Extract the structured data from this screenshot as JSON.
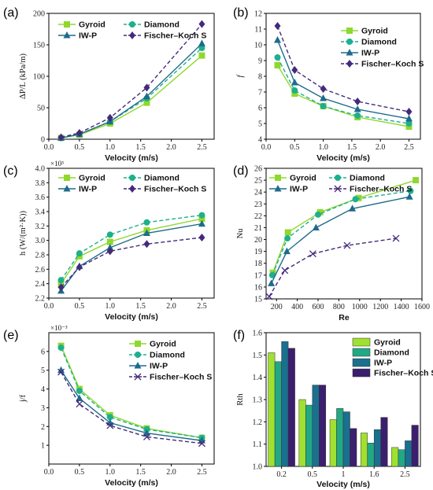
{
  "chart_data": [
    {
      "id": "a",
      "type": "line",
      "panel_label": "(a)",
      "xlabel": "Velocity (m/s)",
      "ylabel": "ΔP/L (kPa/m)",
      "xlim": [
        0,
        2.7
      ],
      "ylim": [
        0,
        200
      ],
      "xticks": [
        0,
        0.5,
        1.0,
        1.5,
        2.0,
        2.5
      ],
      "xtick_labels": [
        "0.0",
        "0.5",
        "1.0",
        "1.5",
        "2.0",
        "2.5"
      ],
      "yticks": [
        0,
        50,
        100,
        150,
        200
      ],
      "ytick_labels": [
        "0",
        "50",
        "100",
        "150",
        "200"
      ],
      "legend_position": "top-left",
      "legend_columns": 2,
      "series": [
        {
          "name": "Gyroid",
          "x": [
            0.2,
            0.5,
            1.0,
            1.6,
            2.5
          ],
          "values": [
            2,
            7,
            25,
            58,
            133
          ]
        },
        {
          "name": "Diamond",
          "x": [
            0.2,
            0.5,
            1.0,
            1.6,
            2.5
          ],
          "values": [
            2,
            8,
            28,
            65,
            145
          ]
        },
        {
          "name": "IW-P",
          "x": [
            0.2,
            0.5,
            1.0,
            1.6,
            2.5
          ],
          "values": [
            2,
            8,
            28,
            68,
            152
          ]
        },
        {
          "name": "Fischer–Koch S",
          "x": [
            0.2,
            0.5,
            1.0,
            1.6,
            2.5
          ],
          "values": [
            3,
            10,
            34,
            82,
            183
          ]
        }
      ]
    },
    {
      "id": "b",
      "type": "line",
      "panel_label": "(b)",
      "xlabel": "Velocity (m/s)",
      "ylabel": "f",
      "xlim": [
        0,
        2.7
      ],
      "ylim": [
        4,
        12
      ],
      "xticks": [
        0,
        0.5,
        1.0,
        1.5,
        2.0,
        2.5
      ],
      "xtick_labels": [
        "0.0",
        "0.5",
        "1.0",
        "1.5",
        "2.0",
        "2.5"
      ],
      "yticks": [
        4,
        5,
        6,
        7,
        8,
        9,
        10,
        11,
        12
      ],
      "ytick_labels": [
        "4",
        "5",
        "6",
        "7",
        "8",
        "9",
        "10",
        "11",
        "12"
      ],
      "legend_position": "right",
      "legend_columns": 1,
      "series": [
        {
          "name": "Gyroid",
          "x": [
            0.2,
            0.5,
            1.0,
            1.6,
            2.5
          ],
          "values": [
            8.7,
            6.9,
            6.1,
            5.4,
            4.8
          ]
        },
        {
          "name": "Diamond",
          "x": [
            0.2,
            0.5,
            1.0,
            1.6,
            2.5
          ],
          "values": [
            9.2,
            7.1,
            6.1,
            5.5,
            5.0
          ]
        },
        {
          "name": "IW-P",
          "x": [
            0.2,
            0.5,
            1.0,
            1.6,
            2.5
          ],
          "values": [
            10.3,
            7.6,
            6.6,
            5.9,
            5.3
          ]
        },
        {
          "name": "Fischer–Koch S",
          "x": [
            0.2,
            0.5,
            1.0,
            1.6,
            2.5
          ],
          "values": [
            11.2,
            8.4,
            7.2,
            6.4,
            5.75
          ]
        }
      ]
    },
    {
      "id": "c",
      "type": "line",
      "panel_label": "(c)",
      "xlabel": "Velocity (m/s)",
      "ylabel": "h (W/(m²·K))",
      "multiplier": "×10³",
      "xlim": [
        0,
        2.7
      ],
      "ylim": [
        2.2,
        4.0
      ],
      "xticks": [
        0,
        0.5,
        1.0,
        1.5,
        2.0,
        2.5
      ],
      "xtick_labels": [
        "0.0",
        "0.5",
        "1.0",
        "1.5",
        "2.0",
        "2.5"
      ],
      "yticks": [
        2.2,
        2.4,
        2.6,
        2.8,
        3.0,
        3.2,
        3.4,
        3.6,
        3.8,
        4.0
      ],
      "ytick_labels": [
        "2.2",
        "2.4",
        "2.6",
        "2.8",
        "3.0",
        "3.2",
        "3.4",
        "3.6",
        "3.8",
        "4.0"
      ],
      "legend_position": "top-left",
      "legend_columns": 2,
      "series": [
        {
          "name": "Gyroid",
          "x": [
            0.2,
            0.5,
            1.0,
            1.6,
            2.5
          ],
          "values": [
            2.4,
            2.78,
            2.98,
            3.14,
            3.3
          ]
        },
        {
          "name": "Diamond",
          "x": [
            0.2,
            0.5,
            1.0,
            1.6,
            2.5
          ],
          "values": [
            2.45,
            2.82,
            3.08,
            3.25,
            3.35
          ]
        },
        {
          "name": "IW-P",
          "x": [
            0.2,
            0.5,
            1.0,
            1.6,
            2.5
          ],
          "values": [
            2.3,
            2.64,
            2.9,
            3.1,
            3.23
          ]
        },
        {
          "name": "Fischer–Koch S",
          "x": [
            0.2,
            0.5,
            1.0,
            1.6,
            2.5
          ],
          "values": [
            2.35,
            2.63,
            2.85,
            2.95,
            3.04
          ]
        }
      ]
    },
    {
      "id": "d",
      "type": "line",
      "panel_label": "(d)",
      "xlabel": "Re",
      "ylabel": "Nu",
      "xlim": [
        100,
        1600
      ],
      "ylim": [
        15,
        26
      ],
      "xticks": [
        200,
        400,
        600,
        800,
        1000,
        1200,
        1400,
        1600
      ],
      "xtick_labels": [
        "200",
        "400",
        "600",
        "800",
        "1000",
        "1200",
        "1400",
        "1600"
      ],
      "yticks": [
        15,
        16,
        17,
        18,
        19,
        20,
        21,
        22,
        23,
        24,
        25,
        26
      ],
      "ytick_labels": [
        "15",
        "16",
        "17",
        "18",
        "19",
        "20",
        "21",
        "22",
        "23",
        "24",
        "25",
        "26"
      ],
      "legend_position": "top-left",
      "legend_columns": 2,
      "series": [
        {
          "name": "Gyroid",
          "x": [
            165,
            310,
            620,
            990,
            1540
          ],
          "values": [
            17.2,
            20.6,
            22.3,
            23.5,
            25.0
          ]
        },
        {
          "name": "Diamond",
          "x": [
            160,
            305,
            600,
            960,
            1490
          ],
          "values": [
            17.0,
            20.1,
            22.1,
            23.4,
            24.1
          ]
        },
        {
          "name": "IW-P",
          "x": [
            150,
            300,
            580,
            930,
            1480
          ],
          "values": [
            16.3,
            19.0,
            21.0,
            22.6,
            23.6
          ]
        },
        {
          "name": "Fischer–Koch S",
          "x": [
            130,
            280,
            550,
            880,
            1350
          ],
          "values": [
            15.2,
            17.4,
            18.8,
            19.5,
            20.1
          ]
        }
      ]
    },
    {
      "id": "e",
      "type": "line",
      "panel_label": "(e)",
      "xlabel": "Velocity (m/s)",
      "ylabel": "j/f",
      "multiplier": "×10⁻³",
      "xlim": [
        0,
        2.7
      ],
      "ylim": [
        0,
        7
      ],
      "xticks": [
        0,
        0.5,
        1.0,
        1.5,
        2.0,
        2.5
      ],
      "xtick_labels": [
        "0.0",
        "0.5",
        "1.0",
        "1.5",
        "2.0",
        "2.5"
      ],
      "yticks": [
        1,
        2,
        3,
        4,
        5,
        6
      ],
      "ytick_labels": [
        "1",
        "2",
        "3",
        "4",
        "5",
        "6"
      ],
      "legend_position": "top-right",
      "legend_columns": 1,
      "series": [
        {
          "name": "Gyroid",
          "x": [
            0.2,
            0.5,
            1.0,
            1.6,
            2.5
          ],
          "values": [
            6.3,
            4.0,
            2.6,
            1.9,
            1.4
          ]
        },
        {
          "name": "Diamond",
          "x": [
            0.2,
            0.5,
            1.0,
            1.6,
            2.5
          ],
          "values": [
            6.2,
            3.9,
            2.5,
            1.85,
            1.4
          ]
        },
        {
          "name": "IW-P",
          "x": [
            0.2,
            0.5,
            1.0,
            1.6,
            2.5
          ],
          "values": [
            5.0,
            3.5,
            2.2,
            1.65,
            1.25
          ]
        },
        {
          "name": "Fischer–Koch S",
          "x": [
            0.2,
            0.5,
            1.0,
            1.6,
            2.5
          ],
          "values": [
            4.9,
            3.2,
            2.05,
            1.45,
            1.1
          ]
        }
      ]
    },
    {
      "id": "f",
      "type": "bar",
      "panel_label": "(f)",
      "xlabel": "Velocity (m/s)",
      "ylabel": "Rth",
      "categories": [
        "0.2",
        "0.5",
        "1",
        "1.6",
        "2.5"
      ],
      "ylim": [
        1.0,
        1.6
      ],
      "yticks": [
        1.0,
        1.1,
        1.2,
        1.3,
        1.4,
        1.5,
        1.6
      ],
      "ytick_labels": [
        "1.0",
        "1.1",
        "1.2",
        "1.3",
        "1.4",
        "1.5",
        "1.6"
      ],
      "legend_position": "top-right",
      "legend_columns": 1,
      "series": [
        {
          "name": "Gyroid",
          "values": [
            1.51,
            1.3,
            1.21,
            1.15,
            1.085
          ]
        },
        {
          "name": "Diamond",
          "values": [
            1.47,
            1.275,
            1.26,
            1.105,
            1.075
          ]
        },
        {
          "name": "IW-P",
          "values": [
            1.56,
            1.365,
            1.245,
            1.165,
            1.115
          ]
        },
        {
          "name": "Fischer–Koch S",
          "values": [
            1.53,
            1.365,
            1.17,
            1.22,
            1.185
          ]
        }
      ]
    }
  ],
  "styles": {
    "Gyroid": {
      "color": "#8fd82e",
      "marker": "square",
      "dash": false
    },
    "Diamond": {
      "color": "#1eaf8c",
      "marker": "circle",
      "dash": true
    },
    "IW-P": {
      "color": "#1e6b8c",
      "marker": "triangle",
      "dash": false
    },
    "Fischer–Koch S": {
      "color": "#442a7a",
      "marker": "diamond",
      "dash": true
    },
    "Fischer–Koch S (d,e)": {
      "color": "#442a7a",
      "marker": "cross",
      "dash": true
    },
    "bar_colors": [
      "#a0e030",
      "#22a884",
      "#1b6f8f",
      "#3b1f6e"
    ]
  }
}
